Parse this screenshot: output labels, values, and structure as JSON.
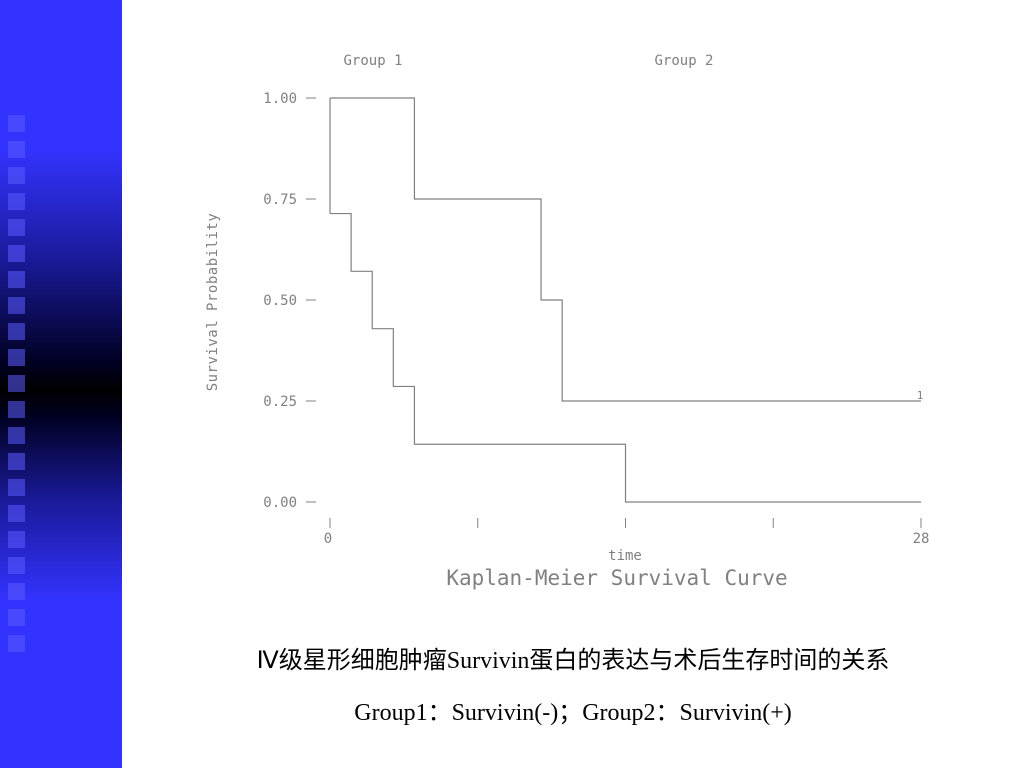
{
  "slide": {
    "caption_line1": "Ⅳ级星形细胞肿瘤Survivin蛋白的表达与术后生存时间的关系",
    "caption_line2": "Group1：Survivin(-)；Group2：Survivin(+)"
  },
  "chart_data": {
    "type": "line",
    "title": "Kaplan-Meier Survival Curve",
    "xlabel": "time",
    "ylabel": "Survival Probability",
    "xlim": [
      0,
      28
    ],
    "ylim": [
      0,
      1
    ],
    "x_tick_labels": [
      {
        "value": 0,
        "label": "0"
      },
      {
        "value": 28,
        "label": "28"
      }
    ],
    "x_ticks_unlabeled": [
      7,
      14,
      21
    ],
    "y_ticks": [
      {
        "value": 1.0,
        "label": "1.00"
      },
      {
        "value": 0.75,
        "label": "0.75"
      },
      {
        "value": 0.5,
        "label": "0.50"
      },
      {
        "value": 0.25,
        "label": "0.25"
      },
      {
        "value": 0.0,
        "label": "0.00"
      }
    ],
    "grid": false,
    "legend_position": "top",
    "series": [
      {
        "name": "Group 1",
        "step": true,
        "points": [
          [
            0,
            0.714
          ],
          [
            1,
            0.571
          ],
          [
            2,
            0.429
          ],
          [
            3,
            0.286
          ],
          [
            4,
            0.143
          ],
          [
            14,
            0.0
          ],
          [
            28,
            0.0
          ]
        ]
      },
      {
        "name": "Group 2",
        "step": true,
        "points": [
          [
            0,
            1.0
          ],
          [
            4,
            0.75
          ],
          [
            10,
            0.5
          ],
          [
            11,
            0.25
          ],
          [
            28,
            0.25
          ]
        ],
        "end_label": "1"
      }
    ],
    "color": "#808080"
  }
}
